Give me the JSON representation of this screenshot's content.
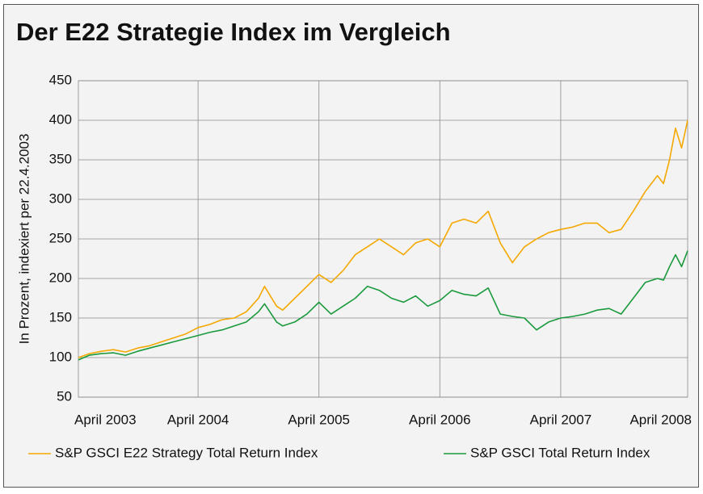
{
  "chart_data": {
    "type": "line",
    "title": "Der E22 Strategie Index im Vergleich",
    "y_label": "In Prozent, indexiert per 22.4.2003",
    "x": [
      2003.31,
      2003.4,
      2003.5,
      2003.6,
      2003.7,
      2003.8,
      2003.9,
      2004.0,
      2004.1,
      2004.2,
      2004.3,
      2004.4,
      2004.5,
      2004.6,
      2004.7,
      2004.8,
      2004.85,
      2004.95,
      2005.0,
      2005.1,
      2005.2,
      2005.3,
      2005.4,
      2005.5,
      2005.6,
      2005.7,
      2005.8,
      2005.9,
      2006.0,
      2006.1,
      2006.2,
      2006.3,
      2006.4,
      2006.5,
      2006.6,
      2006.7,
      2006.8,
      2006.9,
      2007.0,
      2007.1,
      2007.2,
      2007.3,
      2007.4,
      2007.5,
      2007.6,
      2007.7,
      2007.8,
      2007.9,
      2008.0,
      2008.1,
      2008.15,
      2008.2,
      2008.25,
      2008.3,
      2008.35
    ],
    "series": [
      {
        "name": "S&P GSCI E22 Strategy Total Return Index",
        "color": "#f5a800",
        "values": [
          100,
          105,
          108,
          110,
          107,
          112,
          115,
          120,
          125,
          130,
          138,
          142,
          148,
          150,
          158,
          175,
          190,
          165,
          160,
          175,
          190,
          205,
          195,
          210,
          230,
          240,
          250,
          240,
          230,
          245,
          250,
          240,
          270,
          275,
          270,
          285,
          245,
          220,
          240,
          250,
          258,
          262,
          265,
          270,
          270,
          258,
          262,
          285,
          310,
          330,
          320,
          350,
          390,
          365,
          400
        ]
      },
      {
        "name": "S&P GSCI Total Return Index",
        "color": "#1a9a3c",
        "values": [
          97,
          103,
          105,
          106,
          103,
          108,
          112,
          116,
          120,
          124,
          128,
          132,
          135,
          140,
          145,
          158,
          168,
          145,
          140,
          145,
          155,
          170,
          155,
          165,
          175,
          190,
          185,
          175,
          170,
          178,
          165,
          172,
          185,
          180,
          178,
          188,
          155,
          152,
          150,
          135,
          145,
          150,
          152,
          155,
          160,
          162,
          155,
          175,
          195,
          200,
          198,
          215,
          230,
          215,
          235
        ]
      }
    ],
    "xlim": [
      2003.31,
      2008.35
    ],
    "xticks": [
      {
        "value": 2003.31,
        "label": "April 2003"
      },
      {
        "value": 2004.3,
        "label": "April 2004"
      },
      {
        "value": 2005.3,
        "label": "April 2005"
      },
      {
        "value": 2006.3,
        "label": "April 2006"
      },
      {
        "value": 2007.3,
        "label": "April 2007"
      },
      {
        "value": 2008.3,
        "label": "April 2008"
      }
    ],
    "ylim": [
      50,
      450
    ],
    "yticks": [
      50,
      100,
      150,
      200,
      250,
      300,
      350,
      400,
      450
    ],
    "grid": true
  }
}
